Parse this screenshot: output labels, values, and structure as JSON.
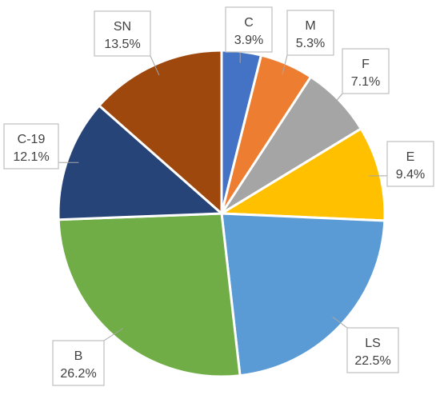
{
  "chart_data": {
    "type": "pie",
    "start_angle_deg": 0,
    "direction": "clockwise",
    "slices": [
      {
        "label": "C",
        "value": 3.9,
        "display": "3.9%",
        "color": "#4472C4"
      },
      {
        "label": "M",
        "value": 5.3,
        "display": "5.3%",
        "color": "#ED7D31"
      },
      {
        "label": "F",
        "value": 7.1,
        "display": "7.1%",
        "color": "#A5A5A5"
      },
      {
        "label": "E",
        "value": 9.4,
        "display": "9.4%",
        "color": "#FFC000"
      },
      {
        "label": "LS",
        "value": 22.5,
        "display": "22.5%",
        "color": "#5B9BD5"
      },
      {
        "label": "B",
        "value": 26.2,
        "display": "26.2%",
        "color": "#70AD47"
      },
      {
        "label": "C-19",
        "value": 12.1,
        "display": "12.1%",
        "color": "#264478"
      },
      {
        "label": "SN",
        "value": 13.5,
        "display": "13.5%",
        "color": "#9E480E"
      }
    ],
    "legend": "none"
  }
}
